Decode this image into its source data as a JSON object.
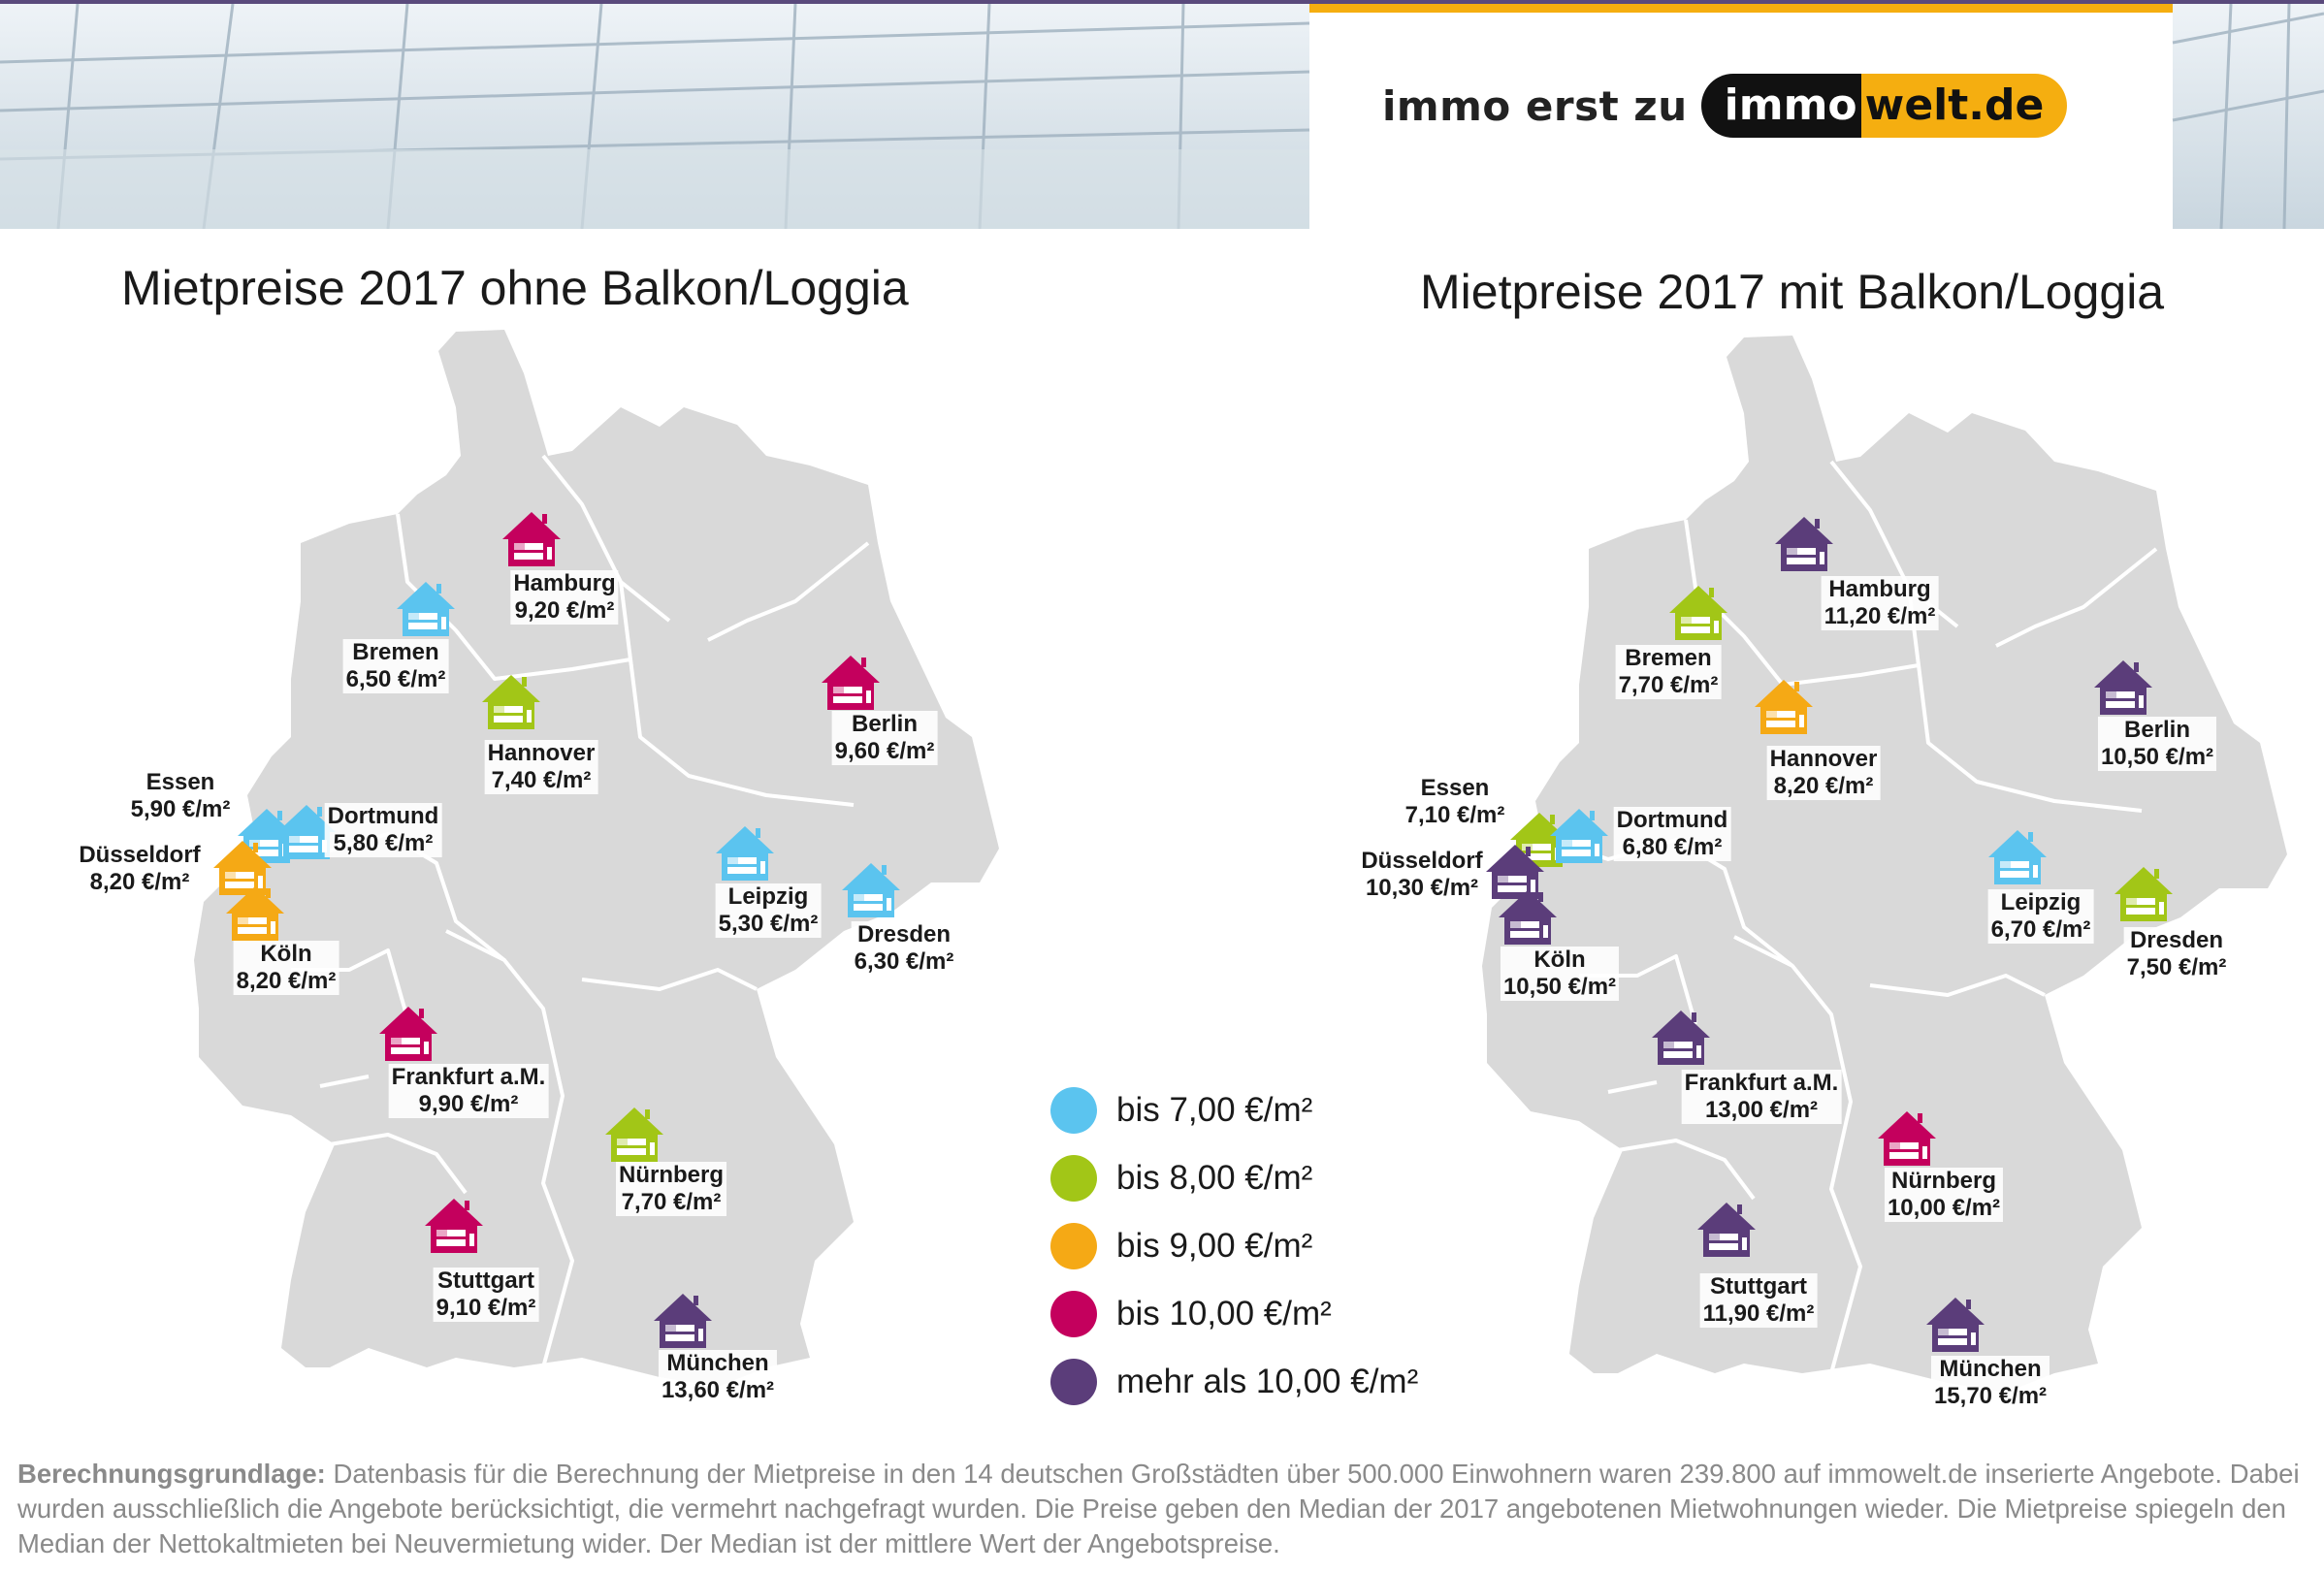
{
  "brand": {
    "tagline": "immo erst zu",
    "logo_part1": "immo",
    "logo_part2": "welt.de"
  },
  "left_map": {
    "title": "Mietpreise 2017 ohne Balkon/Loggia",
    "cities": [
      {
        "name": "Hamburg",
        "price": "9,20 €/m²",
        "category": "bis 10,00 €/m²",
        "color": "#c4005d"
      },
      {
        "name": "Bremen",
        "price": "6,50 €/m²",
        "category": "bis 7,00 €/m²",
        "color": "#5bc4ef"
      },
      {
        "name": "Hannover",
        "price": "7,40 €/m²",
        "category": "bis 8,00 €/m²",
        "color": "#a2c617"
      },
      {
        "name": "Berlin",
        "price": "9,60 €/m²",
        "category": "bis 10,00 €/m²",
        "color": "#c4005d"
      },
      {
        "name": "Essen",
        "price": "5,90 €/m²",
        "category": "bis 7,00 €/m²",
        "color": "#5bc4ef"
      },
      {
        "name": "Dortmund",
        "price": "5,80 €/m²",
        "category": "bis 7,00 €/m²",
        "color": "#5bc4ef"
      },
      {
        "name": "Düsseldorf",
        "price": "8,20 €/m²",
        "category": "bis 9,00 €/m²",
        "color": "#f5a915"
      },
      {
        "name": "Köln",
        "price": "8,20 €/m²",
        "category": "bis 9,00 €/m²",
        "color": "#f5a915"
      },
      {
        "name": "Leipzig",
        "price": "5,30 €/m²",
        "category": "bis 7,00 €/m²",
        "color": "#5bc4ef"
      },
      {
        "name": "Dresden",
        "price": "6,30 €/m²",
        "category": "bis 7,00 €/m²",
        "color": "#5bc4ef"
      },
      {
        "name": "Frankfurt a.M.",
        "price": "9,90 €/m²",
        "category": "bis 10,00 €/m²",
        "color": "#c4005d"
      },
      {
        "name": "Nürnberg",
        "price": "7,70 €/m²",
        "category": "bis 8,00 €/m²",
        "color": "#a2c617"
      },
      {
        "name": "Stuttgart",
        "price": "9,10 €/m²",
        "category": "bis 10,00 €/m²",
        "color": "#c4005d"
      },
      {
        "name": "München",
        "price": "13,60 €/m²",
        "category": "mehr als 10,00 €/m²",
        "color": "#5b3d7a"
      }
    ]
  },
  "right_map": {
    "title": "Mietpreise 2017 mit Balkon/Loggia",
    "cities": [
      {
        "name": "Hamburg",
        "price": "11,20 €/m²",
        "category": "mehr als 10,00 €/m²",
        "color": "#5b3d7a"
      },
      {
        "name": "Bremen",
        "price": "7,70 €/m²",
        "category": "bis 8,00 €/m²",
        "color": "#a2c617"
      },
      {
        "name": "Hannover",
        "price": "8,20 €/m²",
        "category": "bis 9,00 €/m²",
        "color": "#f5a915"
      },
      {
        "name": "Berlin",
        "price": "10,50 €/m²",
        "category": "mehr als 10,00 €/m²",
        "color": "#5b3d7a"
      },
      {
        "name": "Essen",
        "price": "7,10 €/m²",
        "category": "bis 8,00 €/m²",
        "color": "#a2c617"
      },
      {
        "name": "Dortmund",
        "price": "6,80 €/m²",
        "category": "bis 7,00 €/m²",
        "color": "#5bc4ef"
      },
      {
        "name": "Düsseldorf",
        "price": "10,30 €/m²",
        "category": "mehr als 10,00 €/m²",
        "color": "#5b3d7a"
      },
      {
        "name": "Köln",
        "price": "10,50 €/m²",
        "category": "mehr als 10,00 €/m²",
        "color": "#5b3d7a"
      },
      {
        "name": "Leipzig",
        "price": "6,70 €/m²",
        "category": "bis 7,00 €/m²",
        "color": "#5bc4ef"
      },
      {
        "name": "Dresden",
        "price": "7,50 €/m²",
        "category": "bis 8,00 €/m²",
        "color": "#a2c617"
      },
      {
        "name": "Frankfurt a.M.",
        "price": "13,00 €/m²",
        "category": "mehr als 10,00 €/m²",
        "color": "#5b3d7a"
      },
      {
        "name": "Nürnberg",
        "price": "10,00 €/m²",
        "category": "bis 10,00 €/m²",
        "color": "#c4005d"
      },
      {
        "name": "Stuttgart",
        "price": "11,90 €/m²",
        "category": "mehr als 10,00 €/m²",
        "color": "#5b3d7a"
      },
      {
        "name": "München",
        "price": "15,70 €/m²",
        "category": "mehr als 10,00 €/m²",
        "color": "#5b3d7a"
      }
    ]
  },
  "legend": [
    {
      "label": "bis 7,00 €/m²",
      "color": "#5bc4ef"
    },
    {
      "label": "bis 8,00 €/m²",
      "color": "#a2c617"
    },
    {
      "label": "bis 9,00 €/m²",
      "color": "#f5a915"
    },
    {
      "label": "bis 10,00 €/m²",
      "color": "#c4005d"
    },
    {
      "label": "mehr als 10,00 €/m²",
      "color": "#5b3d7a"
    }
  ],
  "footnote": {
    "label": "Berechnungsgrundlage:",
    "text": " Datenbasis für die Berechnung der Mietpreise in den 14 deutschen Großstädten über 500.000 Einwohnern waren 239.800 auf immowelt.de inserierte Angebote. Dabei wurden ausschließlich die Angebote berücksichtigt, die vermehrt nachgefragt wurden. Die Preise geben den Median der 2017 angebotenen Mietwohnungen wieder. Die Mietpreise spiegeln den Median der Nettokaltmieten bei Neuvermietung wider. Der Median ist der mittlere Wert der Angebotspreise."
  }
}
